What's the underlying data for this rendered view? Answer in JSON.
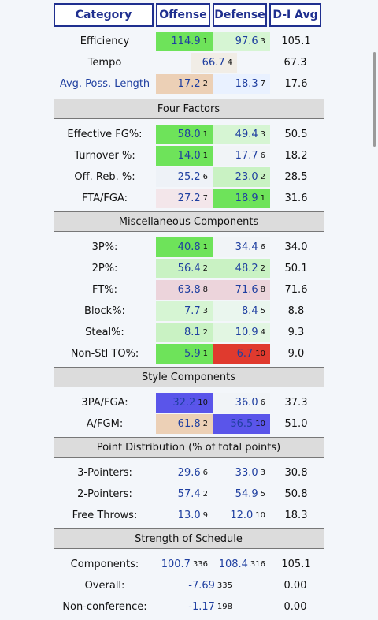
{
  "headers": {
    "category": "Category",
    "offense": "Offense",
    "defense": "Defense",
    "avg": "D-I Avg"
  },
  "top": [
    {
      "label": "Efficiency",
      "off": "114.9",
      "offr": "1",
      "def": "97.6",
      "defr": "3",
      "avg": "105.1",
      "offbg": "#6ee35a",
      "defbg": "#d6f5d3"
    },
    {
      "label": "Tempo",
      "single": "66.7",
      "singler": "4",
      "avg": "67.3",
      "singlebg": "#f1ede6"
    },
    {
      "label": "Avg. Poss. Length",
      "link": true,
      "off": "17.2",
      "offr": "2",
      "def": "18.3",
      "defr": "7",
      "avg": "17.6",
      "offbg": "#ecd0b6",
      "defbg": "#e9f1ff"
    }
  ],
  "sections": [
    {
      "title": "Four Factors",
      "rows": [
        {
          "label": "Effective FG%:",
          "off": "58.0",
          "offr": "1",
          "def": "49.4",
          "defr": "3",
          "avg": "50.5",
          "offbg": "#6ee35a",
          "defbg": "#d6f5d3"
        },
        {
          "label": "Turnover %:",
          "off": "14.0",
          "offr": "1",
          "def": "17.7",
          "defr": "6",
          "avg": "18.2",
          "offbg": "#6ee35a",
          "defbg": "#f1f4f7"
        },
        {
          "label": "Off. Reb. %:",
          "off": "25.2",
          "offr": "6",
          "def": "23.0",
          "defr": "2",
          "avg": "28.5",
          "offbg": "#eef2f7",
          "defbg": "#c9f2c3"
        },
        {
          "label": "FTA/FGA:",
          "off": "27.2",
          "offr": "7",
          "def": "18.9",
          "defr": "1",
          "avg": "31.6",
          "offbg": "#f3e6ea",
          "defbg": "#6ee35a"
        }
      ]
    },
    {
      "title": "Miscellaneous Components",
      "rows": [
        {
          "label": "3P%:",
          "off": "40.8",
          "offr": "1",
          "def": "34.4",
          "defr": "6",
          "avg": "34.0",
          "offbg": "#6ee35a",
          "defbg": "#f1f4f7"
        },
        {
          "label": "2P%:",
          "off": "56.4",
          "offr": "2",
          "def": "48.2",
          "defr": "2",
          "avg": "50.1",
          "offbg": "#c9f2c3",
          "defbg": "#c9f2c3"
        },
        {
          "label": "FT%:",
          "off": "63.8",
          "offr": "8",
          "def": "71.6",
          "defr": "8",
          "avg": "71.6",
          "offbg": "#ecd4db",
          "defbg": "#ecd4db"
        },
        {
          "label": "Block%:",
          "off": "7.7",
          "offr": "3",
          "def": "8.4",
          "defr": "5",
          "avg": "8.8",
          "offbg": "#d6f5d3",
          "defbg": "#eaf6ee"
        },
        {
          "label": "Steal%:",
          "off": "8.1",
          "offr": "2",
          "def": "10.9",
          "defr": "4",
          "avg": "9.3",
          "offbg": "#c9f2c3",
          "defbg": "#e2f6e2"
        },
        {
          "label": "Non-Stl TO%:",
          "off": "5.9",
          "offr": "1",
          "def": "6.7",
          "defr": "10",
          "avg": "9.0",
          "offbg": "#6ee35a",
          "defbg": "#e03a2e"
        }
      ]
    },
    {
      "title": "Style Components",
      "rows": [
        {
          "label": "3PA/FGA:",
          "off": "32.2",
          "offr": "10",
          "def": "36.0",
          "defr": "6",
          "avg": "37.3",
          "offbg": "#5a55ea",
          "defbg": "#f1f4f7"
        },
        {
          "label": "A/FGM:",
          "off": "61.8",
          "offr": "2",
          "def": "56.5",
          "defr": "10",
          "avg": "51.0",
          "offbg": "#ecd0b6",
          "defbg": "#5a55ea"
        }
      ]
    },
    {
      "title": "Point Distribution (% of total points)",
      "rows": [
        {
          "label": "3-Pointers:",
          "off": "29.6",
          "offr": "6",
          "def": "33.0",
          "defr": "3",
          "avg": "30.8"
        },
        {
          "label": "2-Pointers:",
          "off": "57.4",
          "offr": "2",
          "def": "54.9",
          "defr": "5",
          "avg": "50.8"
        },
        {
          "label": "Free Throws:",
          "off": "13.0",
          "offr": "9",
          "def": "12.0",
          "defr": "10",
          "avg": "18.3"
        }
      ]
    },
    {
      "title": "Strength of Schedule",
      "rows": [
        {
          "label": "Components:",
          "off": "100.7",
          "offr": "336",
          "def": "108.4",
          "defr": "316",
          "avg": "105.1"
        },
        {
          "label": "Overall:",
          "single": "-7.69",
          "singler": "335",
          "avg": "0.00"
        },
        {
          "label": "Non-conference:",
          "single": "-1.17",
          "singler": "198",
          "avg": "0.00"
        }
      ]
    }
  ]
}
